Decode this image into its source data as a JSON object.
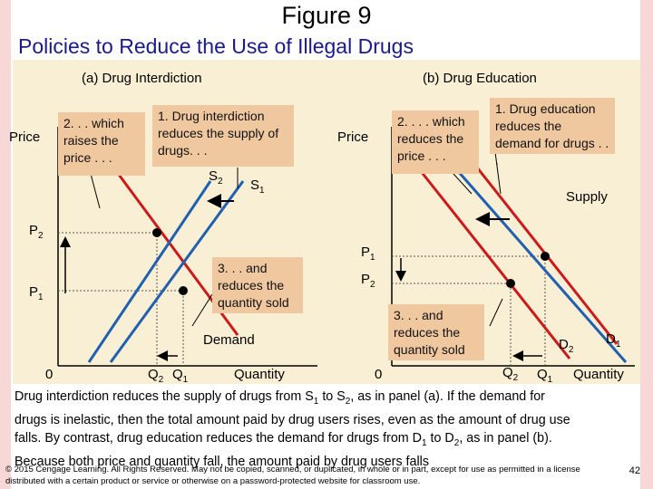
{
  "figure_title": "Figure 9",
  "subtitle": "Policies to Reduce the Use of Illegal Drugs",
  "panel_a": {
    "title": "(a) Drug Interdiction",
    "y_axis": "Price",
    "x_axis": "Quantity",
    "origin": "0",
    "s2": "S",
    "s2_sub": "2",
    "s1": "S",
    "s1_sub": "1",
    "demand": "Demand",
    "p2": "P",
    "p2_sub": "2",
    "p1": "P",
    "p1_sub": "1",
    "q2": "Q",
    "q2_sub": "2",
    "q1": "Q",
    "q1_sub": "1",
    "box1": "1. Drug interdiction reduces the supply of drugs. . .",
    "box2": "2. . . which raises the price . . .",
    "box3": "3. . . and reduces the quantity sold"
  },
  "panel_b": {
    "title": "(b) Drug Education",
    "y_axis": "Price",
    "x_axis": "Quantity",
    "origin": "0",
    "supply": "Supply",
    "d1": "D",
    "d1_sub": "1",
    "d2": "D",
    "d2_sub": "2",
    "p1": "P",
    "p1_sub": "1",
    "p2": "P",
    "p2_sub": "2",
    "q2": "Q",
    "q2_sub": "2",
    "q1": "Q",
    "q1_sub": "1",
    "box1": "1. Drug education reduces the demand for drugs . . .",
    "box2": "2. . . . which reduces the price . . .",
    "box3": "3. . . and reduces the quantity sold"
  },
  "caption": {
    "l1a": "Drug interdiction reduces the supply of drugs from S",
    "l1b": "1",
    "l1c": " to S",
    "l1d": "2",
    "l1e": ", as in panel (a). If the demand for",
    "l2": "drugs is inelastic, then the total amount paid by drug users rises, even as the amount of drug use",
    "l3a": "falls. By contrast, drug education reduces the demand for drugs from D",
    "l3b": "1",
    "l3c": " to D",
    "l3d": "2",
    "l3e": ", as in panel (b).",
    "l4": "Because both price and quantity fall, the amount paid by drug users falls"
  },
  "footer": "© 2015 Cengage Learning. All Rights Reserved. May not be copied, scanned, or duplicated, in whole or in part, except for use as permitted in a license distributed with a certain product or service or otherwise on a password-protected website for classroom use.",
  "page_number": "42",
  "colors": {
    "supply": "#2060b0",
    "demand": "#cc1a1a",
    "box": "#f0c8a0",
    "panel": "#f9efd4",
    "subtitle": "#1a1a8c"
  }
}
